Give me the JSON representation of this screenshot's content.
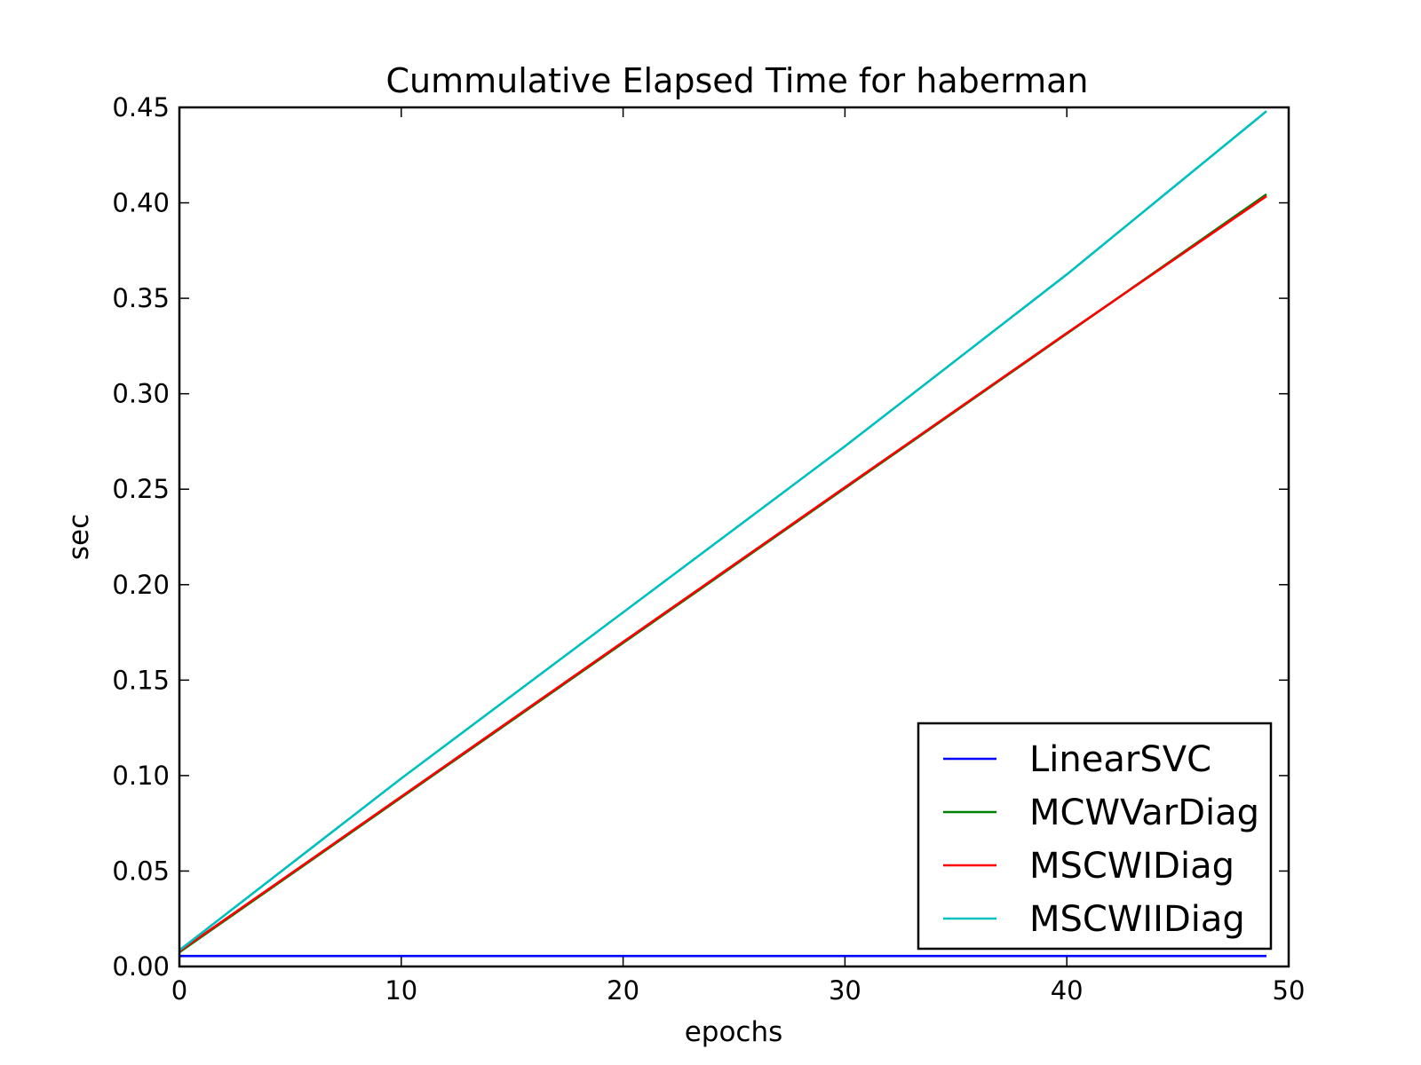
{
  "chart_data": {
    "type": "line",
    "title": "Cummulative Elapsed Time for haberman",
    "xlabel": "epochs",
    "ylabel": "sec",
    "xlim": [
      0,
      50
    ],
    "ylim": [
      0,
      0.45
    ],
    "xticks": [
      "0",
      "10",
      "20",
      "30",
      "40",
      "50"
    ],
    "yticks": [
      "0.00",
      "0.05",
      "0.10",
      "0.15",
      "0.20",
      "0.25",
      "0.30",
      "0.35",
      "0.40",
      "0.45"
    ],
    "grid": false,
    "legend_position": "lower-right",
    "series": [
      {
        "name": "LinearSVC",
        "color": "#0000ff",
        "points": [
          [
            0,
            0.0055
          ],
          [
            49,
            0.0055
          ]
        ]
      },
      {
        "name": "MCWVarDiag",
        "color": "#008000",
        "points": [
          [
            0,
            0.0075
          ],
          [
            10,
            0.0885
          ],
          [
            20,
            0.1695
          ],
          [
            30,
            0.2505
          ],
          [
            40,
            0.3315
          ],
          [
            49,
            0.4045
          ]
        ]
      },
      {
        "name": "MSCWIDiag",
        "color": "#ff0000",
        "points": [
          [
            0,
            0.008
          ],
          [
            10,
            0.089
          ],
          [
            20,
            0.17
          ],
          [
            30,
            0.251
          ],
          [
            40,
            0.3318
          ],
          [
            49,
            0.4035
          ]
        ]
      },
      {
        "name": "MSCWIIDiag",
        "color": "#00bfbf",
        "points": [
          [
            0,
            0.0085
          ],
          [
            10,
            0.0985
          ],
          [
            20,
            0.1855
          ],
          [
            30,
            0.2725
          ],
          [
            40,
            0.3625
          ],
          [
            49,
            0.448
          ]
        ]
      }
    ]
  }
}
